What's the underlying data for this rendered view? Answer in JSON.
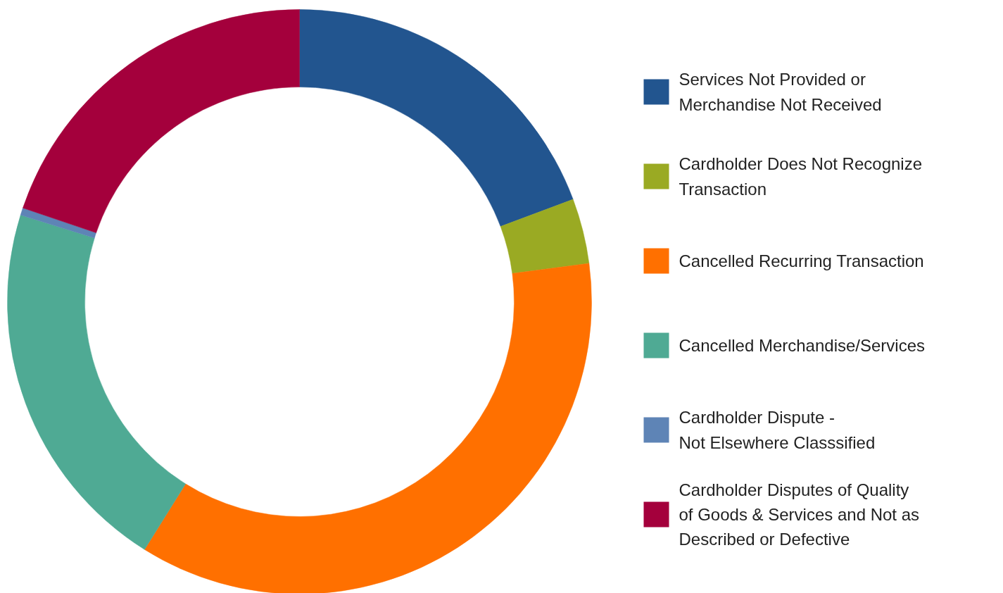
{
  "chart_data": {
    "type": "donut",
    "categories": [
      "Services Not Provided or\nMerchandise Not Received",
      "Cardholder Does Not Recognize\nTransaction",
      "Cancelled Recurring Transaction",
      "Cancelled Merchandise/Services",
      "Cardholder Dispute -\nNot Elsewhere Classsified",
      "Cardholder Disputes of Quality\nof Goods & Services and Not as\nDescribed or Defective"
    ],
    "values": [
      19.3,
      3.6,
      36.0,
      20.9,
      0.4,
      19.8
    ],
    "colors": [
      "#22558f",
      "#9aaa23",
      "#ff7000",
      "#4faa94",
      "#5e84b6",
      "#a4003c"
    ],
    "legend": "right"
  }
}
